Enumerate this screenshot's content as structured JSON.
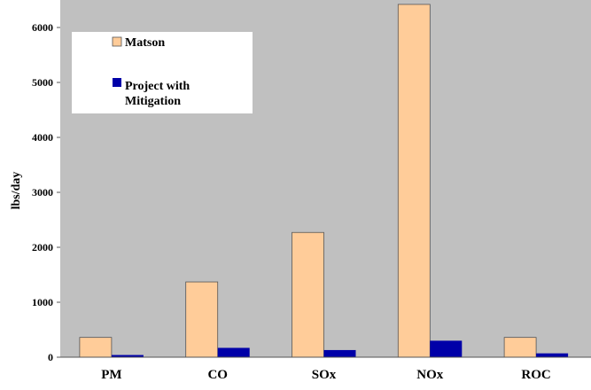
{
  "chart_data": {
    "type": "bar",
    "title": "",
    "xlabel": "",
    "ylabel": "lbs/day",
    "categories": [
      "PM",
      "CO",
      "SOx",
      "NOx",
      "ROC"
    ],
    "series": [
      {
        "name": "Matson",
        "values": [
          360,
          1370,
          2270,
          6420,
          360
        ],
        "color": "#FFCC99"
      },
      {
        "name": "Project with Mitigation",
        "values": [
          40,
          170,
          130,
          300,
          70
        ],
        "color": "#0000A8"
      }
    ],
    "ylim": [
      0,
      6500
    ],
    "yticks": [
      0,
      1000,
      2000,
      3000,
      4000,
      5000,
      6000
    ],
    "grid": false,
    "legend_position": "top-left",
    "plot_background": "#C0C0C0"
  }
}
